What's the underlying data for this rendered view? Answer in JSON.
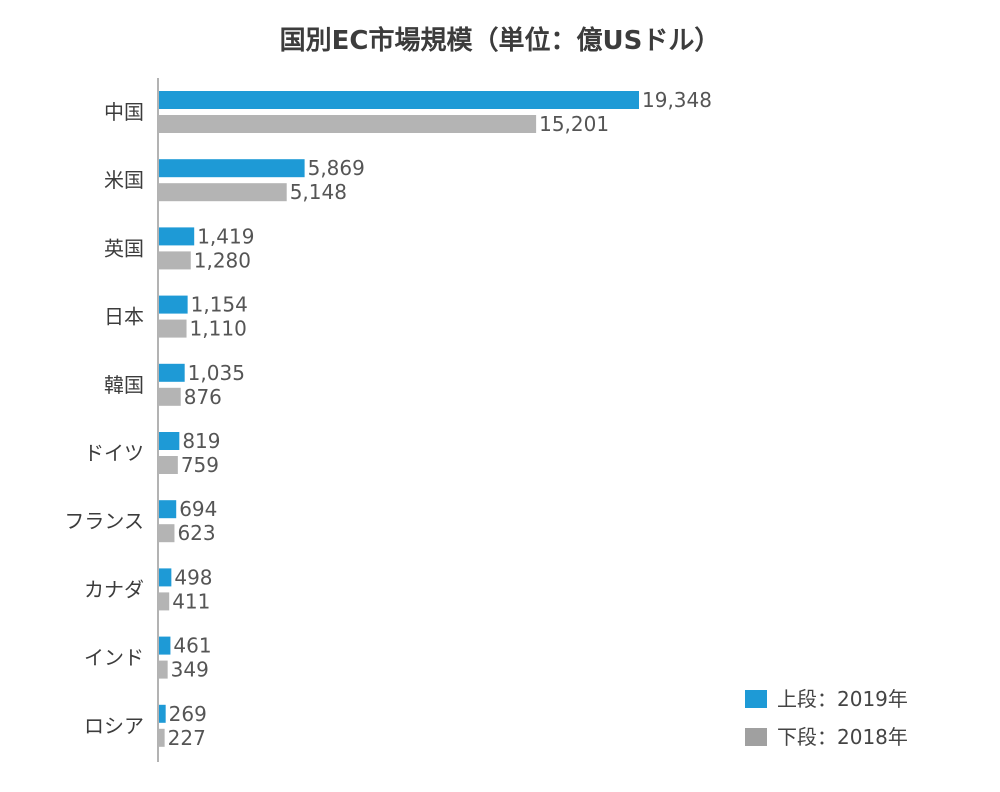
{
  "chart_data": {
    "type": "bar",
    "orientation": "horizontal",
    "title": "国別EC市場規模（単位：億USドル）",
    "categories": [
      "中国",
      "米国",
      "英国",
      "日本",
      "韓国",
      "ドイツ",
      "フランス",
      "カナダ",
      "インド",
      "ロシア"
    ],
    "series": [
      {
        "name": "上段：2019年",
        "color": "#1e9ad6",
        "values": [
          19348,
          5869,
          1419,
          1154,
          1035,
          819,
          694,
          498,
          461,
          269
        ],
        "labels": [
          "19,348",
          "5,869",
          "1,419",
          "1,154",
          "1,035",
          "819",
          "694",
          "498",
          "461",
          "269"
        ]
      },
      {
        "name": "下段：2018年",
        "color": "#b4b4b4",
        "values": [
          15201,
          5148,
          1280,
          1110,
          876,
          759,
          623,
          411,
          349,
          227
        ],
        "labels": [
          "15,201",
          "5,148",
          "1,280",
          "1,110",
          "876",
          "759",
          "623",
          "411",
          "349",
          "227"
        ]
      }
    ],
    "xlim": [
      0,
      22000
    ],
    "grid": false,
    "legend_position": "bottom-right",
    "legend_colors": [
      "#1e9ad6",
      "#a0a0a0"
    ]
  }
}
